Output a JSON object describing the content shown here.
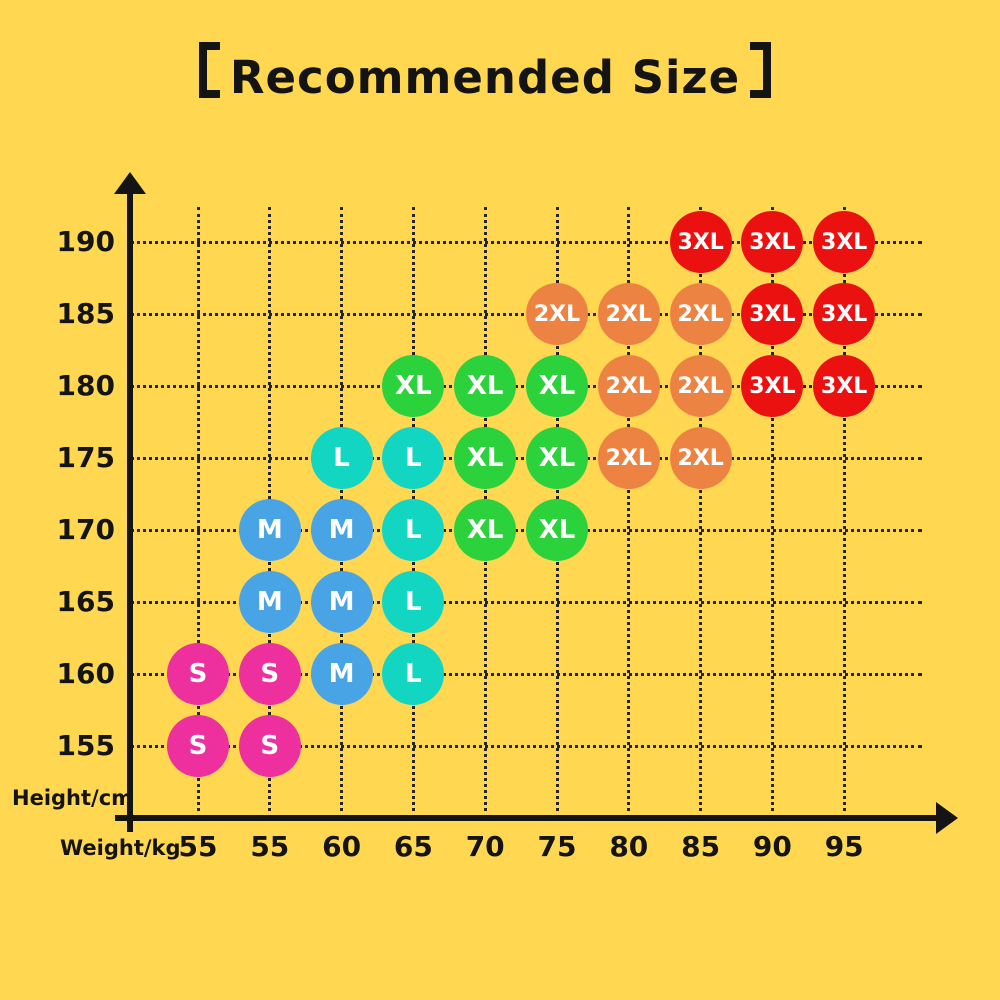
{
  "title": {
    "text": "Recommended Size",
    "full_text": "【Recommended Size】"
  },
  "axes": {
    "y_title": "Height/cm",
    "x_title": "Weight/kg",
    "y_ticks": [
      "190",
      "185",
      "180",
      "175",
      "170",
      "165",
      "160",
      "155"
    ],
    "x_ticks": [
      "55",
      "55",
      "60",
      "65",
      "70",
      "75",
      "80",
      "85",
      "90",
      "95"
    ]
  },
  "colors": {
    "background": "#ffd750",
    "axis": "#141414",
    "grid_dots": "#242424",
    "bubble_text": "#ffffff",
    "size_S": "#ee2f9e",
    "size_M": "#49a4e6",
    "size_L": "#12d6c2",
    "size_XL": "#2bd23c",
    "size_2XL": "#ed8342",
    "size_3XL": "#ec1111"
  },
  "chart_data": {
    "type": "scatter",
    "title": "【Recommended Size】",
    "xlabel": "Weight/kg",
    "ylabel": "Height/cm",
    "x_categories": [
      "55",
      "55",
      "60",
      "65",
      "70",
      "75",
      "80",
      "85",
      "90",
      "95"
    ],
    "y_ticks": [
      190,
      185,
      180,
      175,
      170,
      165,
      160,
      155
    ],
    "grid": "dotted",
    "legend": "none",
    "size_colors": {
      "S": "#ee2f9e",
      "M": "#49a4e6",
      "L": "#12d6c2",
      "XL": "#2bd23c",
      "2XL": "#ed8342",
      "3XL": "#ec1111"
    },
    "points": [
      {
        "height": 190,
        "col": 7,
        "weight": "85",
        "size": "3XL"
      },
      {
        "height": 190,
        "col": 8,
        "weight": "90",
        "size": "3XL"
      },
      {
        "height": 190,
        "col": 9,
        "weight": "95",
        "size": "3XL"
      },
      {
        "height": 185,
        "col": 5,
        "weight": "75",
        "size": "2XL"
      },
      {
        "height": 185,
        "col": 6,
        "weight": "80",
        "size": "2XL"
      },
      {
        "height": 185,
        "col": 7,
        "weight": "85",
        "size": "2XL"
      },
      {
        "height": 185,
        "col": 8,
        "weight": "90",
        "size": "3XL"
      },
      {
        "height": 185,
        "col": 9,
        "weight": "95",
        "size": "3XL"
      },
      {
        "height": 180,
        "col": 3,
        "weight": "65",
        "size": "XL"
      },
      {
        "height": 180,
        "col": 4,
        "weight": "70",
        "size": "XL"
      },
      {
        "height": 180,
        "col": 5,
        "weight": "75",
        "size": "XL"
      },
      {
        "height": 180,
        "col": 6,
        "weight": "80",
        "size": "2XL"
      },
      {
        "height": 180,
        "col": 7,
        "weight": "85",
        "size": "2XL"
      },
      {
        "height": 180,
        "col": 8,
        "weight": "90",
        "size": "3XL"
      },
      {
        "height": 180,
        "col": 9,
        "weight": "95",
        "size": "3XL"
      },
      {
        "height": 175,
        "col": 2,
        "weight": "60",
        "size": "L"
      },
      {
        "height": 175,
        "col": 3,
        "weight": "65",
        "size": "L"
      },
      {
        "height": 175,
        "col": 4,
        "weight": "70",
        "size": "XL"
      },
      {
        "height": 175,
        "col": 5,
        "weight": "75",
        "size": "XL"
      },
      {
        "height": 175,
        "col": 6,
        "weight": "80",
        "size": "2XL"
      },
      {
        "height": 175,
        "col": 7,
        "weight": "85",
        "size": "2XL"
      },
      {
        "height": 170,
        "col": 1,
        "weight": "55",
        "size": "M"
      },
      {
        "height": 170,
        "col": 2,
        "weight": "60",
        "size": "M"
      },
      {
        "height": 170,
        "col": 3,
        "weight": "65",
        "size": "L"
      },
      {
        "height": 170,
        "col": 4,
        "weight": "70",
        "size": "XL"
      },
      {
        "height": 170,
        "col": 5,
        "weight": "75",
        "size": "XL"
      },
      {
        "height": 165,
        "col": 1,
        "weight": "55",
        "size": "M"
      },
      {
        "height": 165,
        "col": 2,
        "weight": "60",
        "size": "M"
      },
      {
        "height": 165,
        "col": 3,
        "weight": "65",
        "size": "L"
      },
      {
        "height": 160,
        "col": 0,
        "weight": "55",
        "size": "S"
      },
      {
        "height": 160,
        "col": 1,
        "weight": "55",
        "size": "S"
      },
      {
        "height": 160,
        "col": 2,
        "weight": "60",
        "size": "M"
      },
      {
        "height": 160,
        "col": 3,
        "weight": "65",
        "size": "L"
      },
      {
        "height": 155,
        "col": 0,
        "weight": "55",
        "size": "S"
      },
      {
        "height": 155,
        "col": 1,
        "weight": "55",
        "size": "S"
      }
    ]
  }
}
